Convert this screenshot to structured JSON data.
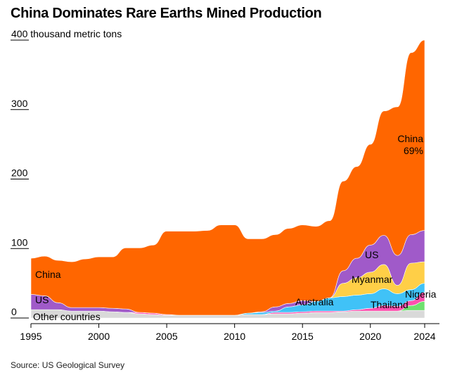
{
  "title": "China Dominates Rare Earths Mined Production",
  "source": "Source: US Geological Survey",
  "chart_data": {
    "type": "area",
    "title": "China Dominates Rare Earths Mined Production",
    "ylabel": "thousand metric tons",
    "ylim": [
      0,
      400
    ],
    "yticks": [
      "400 thousand metric tons",
      "300",
      "200",
      "100",
      "0"
    ],
    "ytick_values": [
      400,
      300,
      200,
      100,
      0
    ],
    "xticks": [
      1995,
      2000,
      2005,
      2010,
      2015,
      2020,
      2024
    ],
    "x": [
      1995,
      1996,
      1997,
      1998,
      1999,
      2000,
      2001,
      2002,
      2003,
      2004,
      2005,
      2006,
      2007,
      2008,
      2009,
      2010,
      2011,
      2012,
      2013,
      2014,
      2015,
      2016,
      2017,
      2018,
      2019,
      2020,
      2021,
      2022,
      2023,
      2024
    ],
    "grid": false,
    "series": [
      {
        "name": "Other countries",
        "color": "#d9d9d9",
        "values": [
          12,
          12,
          12,
          10,
          10,
          10,
          9,
          8,
          6,
          5,
          4,
          4,
          4,
          4,
          4,
          4,
          5,
          5,
          6,
          6,
          7,
          8,
          8,
          9,
          10,
          10,
          10,
          10,
          11,
          11
        ]
      },
      {
        "name": "Nigeria",
        "color": "#6ee06e",
        "values": [
          0,
          0,
          0,
          0,
          0,
          0,
          0,
          0,
          0,
          0,
          0,
          0,
          0,
          0,
          0,
          0,
          0,
          0,
          0,
          0,
          0,
          0,
          0,
          0,
          0,
          0,
          0,
          0,
          7,
          13
        ]
      },
      {
        "name": "Thailand",
        "color": "#ff4fae",
        "values": [
          0,
          0,
          0,
          0,
          0,
          0,
          0,
          0,
          2,
          2,
          1,
          0,
          0,
          0,
          0,
          0,
          0,
          0,
          2,
          2,
          2,
          2,
          2,
          1,
          2,
          4,
          8,
          7,
          7,
          13
        ]
      },
      {
        "name": "Australia",
        "color": "#40c2f7",
        "values": [
          0,
          0,
          0,
          0,
          0,
          0,
          0,
          0,
          0,
          0,
          0,
          0,
          0,
          0,
          0,
          0,
          2,
          3,
          2,
          8,
          10,
          14,
          19,
          21,
          21,
          21,
          24,
          18,
          16,
          13
        ]
      },
      {
        "name": "Myanmar",
        "color": "#ffcf47",
        "values": [
          0,
          0,
          0,
          0,
          0,
          0,
          0,
          0,
          0,
          0,
          0,
          0,
          0,
          0,
          0,
          0,
          0,
          0,
          0,
          0,
          0,
          0,
          0,
          19,
          25,
          31,
          35,
          12,
          38,
          31
        ]
      },
      {
        "name": "US",
        "color": "#a05ac9",
        "values": [
          22,
          20,
          10,
          5,
          5,
          5,
          5,
          5,
          0,
          0,
          0,
          0,
          0,
          0,
          0,
          0,
          0,
          1,
          6,
          5,
          6,
          0,
          0,
          18,
          28,
          39,
          42,
          43,
          41,
          45
        ]
      },
      {
        "name": "China",
        "color": "#ff6600",
        "values": [
          52,
          57,
          61,
          66,
          70,
          73,
          74,
          88,
          93,
          98,
          120,
          121,
          121,
          122,
          130,
          130,
          107,
          105,
          104,
          108,
          109,
          108,
          111,
          129,
          132,
          145,
          179,
          214,
          262,
          274
        ]
      }
    ],
    "annotations": [
      {
        "series": "China",
        "text": "China",
        "value": "69%"
      },
      {
        "series": "US",
        "text": "US"
      },
      {
        "series": "Myanmar",
        "text": "Myanmar"
      },
      {
        "series": "Australia",
        "text": "Australia"
      },
      {
        "series": "Thailand",
        "text": "Thailand"
      },
      {
        "series": "Nigeria",
        "text": "Nigeria"
      },
      {
        "series": "Other countries",
        "text": "Other countries"
      }
    ],
    "labels": {
      "china_left": "China",
      "us_left": "US",
      "other": "Other countries",
      "china_right": "China",
      "china_share": "69%",
      "us_right": "US",
      "myanmar": "Myanmar",
      "australia": "Australia",
      "thailand": "Thailand",
      "nigeria": "Nigeria"
    }
  }
}
